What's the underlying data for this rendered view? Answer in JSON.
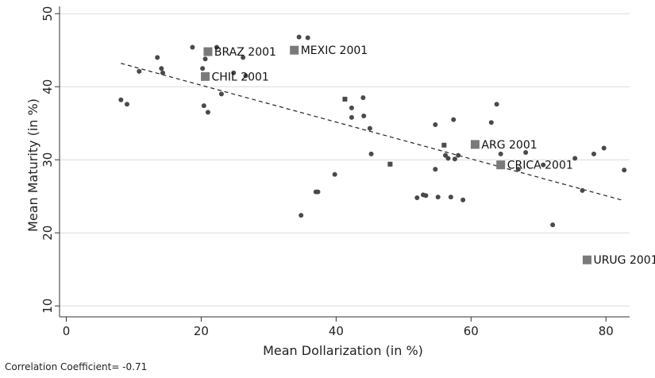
{
  "chart_data": {
    "type": "scatter",
    "title": "",
    "xlabel": "Mean Dollarization  (in %)",
    "ylabel": "Mean Maturity  (in %)",
    "xlim": [
      -1,
      83.5
    ],
    "ylim": [
      8.5,
      51
    ],
    "x_ticks": [
      0,
      20,
      40,
      60,
      80
    ],
    "y_ticks": [
      10,
      20,
      30,
      40,
      50
    ],
    "grid": "horizontal",
    "points": [
      {
        "x": 8.1,
        "y": 38.2
      },
      {
        "x": 9.0,
        "y": 37.6
      },
      {
        "x": 10.8,
        "y": 42.1
      },
      {
        "x": 13.5,
        "y": 44.0
      },
      {
        "x": 14.1,
        "y": 42.5
      },
      {
        "x": 14.3,
        "y": 41.9
      },
      {
        "x": 18.7,
        "y": 45.4
      },
      {
        "x": 20.2,
        "y": 42.5
      },
      {
        "x": 20.4,
        "y": 37.4
      },
      {
        "x": 20.6,
        "y": 43.8
      },
      {
        "x": 21.0,
        "y": 36.5
      },
      {
        "x": 22.3,
        "y": 45.4
      },
      {
        "x": 23.0,
        "y": 39.0
      },
      {
        "x": 24.8,
        "y": 41.9
      },
      {
        "x": 26.2,
        "y": 44.0
      },
      {
        "x": 26.6,
        "y": 41.5
      },
      {
        "x": 34.5,
        "y": 46.8
      },
      {
        "x": 34.8,
        "y": 22.4
      },
      {
        "x": 35.8,
        "y": 46.7
      },
      {
        "x": 37.0,
        "y": 25.6
      },
      {
        "x": 37.3,
        "y": 25.6
      },
      {
        "x": 39.8,
        "y": 28.0
      },
      {
        "x": 42.3,
        "y": 37.1
      },
      {
        "x": 42.3,
        "y": 35.8
      },
      {
        "x": 44.0,
        "y": 38.5
      },
      {
        "x": 44.1,
        "y": 36.0
      },
      {
        "x": 45.0,
        "y": 34.3
      },
      {
        "x": 45.2,
        "y": 30.8
      },
      {
        "x": 52.0,
        "y": 24.8
      },
      {
        "x": 52.9,
        "y": 25.2
      },
      {
        "x": 53.3,
        "y": 25.1
      },
      {
        "x": 54.7,
        "y": 34.8
      },
      {
        "x": 54.7,
        "y": 28.7
      },
      {
        "x": 55.1,
        "y": 24.9
      },
      {
        "x": 56.2,
        "y": 30.6
      },
      {
        "x": 56.6,
        "y": 30.2
      },
      {
        "x": 57.0,
        "y": 24.9
      },
      {
        "x": 57.4,
        "y": 35.5
      },
      {
        "x": 57.6,
        "y": 30.1
      },
      {
        "x": 58.1,
        "y": 30.6
      },
      {
        "x": 58.8,
        "y": 24.5
      },
      {
        "x": 63.0,
        "y": 35.1
      },
      {
        "x": 63.8,
        "y": 37.6
      },
      {
        "x": 64.4,
        "y": 30.8
      },
      {
        "x": 67.0,
        "y": 28.7
      },
      {
        "x": 68.1,
        "y": 31.0
      },
      {
        "x": 70.7,
        "y": 29.3
      },
      {
        "x": 72.1,
        "y": 21.1
      },
      {
        "x": 75.4,
        "y": 30.2
      },
      {
        "x": 76.5,
        "y": 25.8
      },
      {
        "x": 78.2,
        "y": 30.8
      },
      {
        "x": 79.7,
        "y": 31.6
      },
      {
        "x": 82.7,
        "y": 28.6
      }
    ],
    "small_squares": [
      {
        "x": 41.3,
        "y": 38.3
      },
      {
        "x": 48.0,
        "y": 29.4
      },
      {
        "x": 56.0,
        "y": 32.0
      }
    ],
    "labeled_points": [
      {
        "label": "BRAZ 2001",
        "x": 21.0,
        "y": 44.8
      },
      {
        "label": "CHIL 2001",
        "x": 20.6,
        "y": 41.4
      },
      {
        "label": "MEXIC 2001",
        "x": 33.8,
        "y": 45.0
      },
      {
        "label": "ARG 2001",
        "x": 60.6,
        "y": 32.1
      },
      {
        "label": "CRICA 2001",
        "x": 64.4,
        "y": 29.3
      },
      {
        "label": "URUG 2001",
        "x": 77.2,
        "y": 16.3
      }
    ],
    "fit_line": [
      {
        "x": 8.1,
        "y": 43.2
      },
      {
        "x": 82.7,
        "y": 24.4
      }
    ],
    "annotation": "Correlation Coefficient= -0.71",
    "colors": {
      "point": "#4a4a4a",
      "square": "#7a7a7a",
      "line": "#222222",
      "grid": "#dcdcdc"
    }
  }
}
